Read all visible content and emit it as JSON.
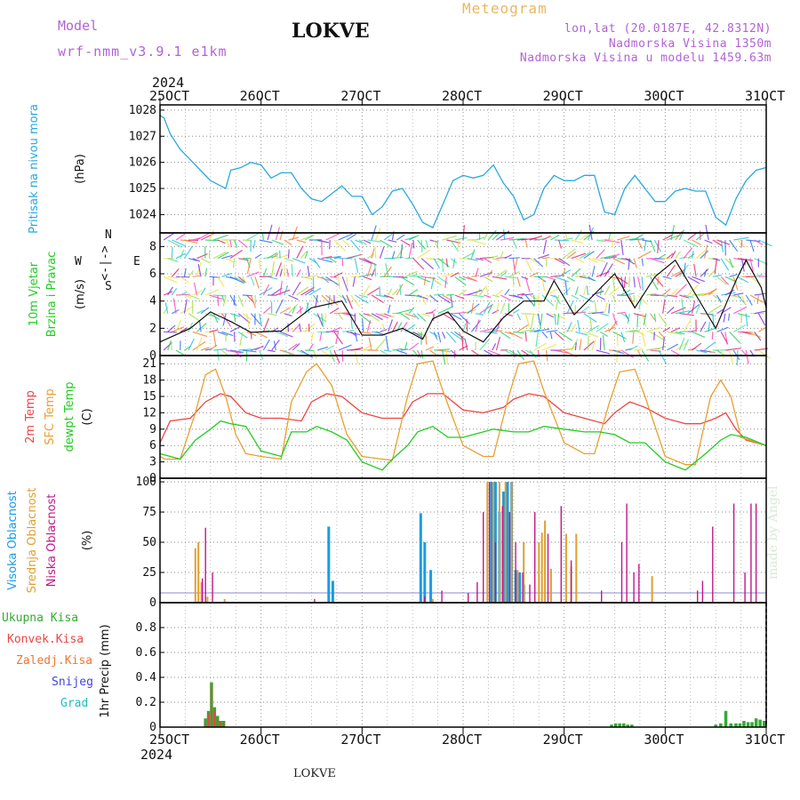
{
  "header": {
    "model_label": "Model",
    "model_name": "wrf-nmm_v3.9.1 e1km",
    "station": "LOKVE",
    "title": "Meteogram",
    "lonlat": "lon,lat (20.0187E, 42.8312N)",
    "elevation": "Nadmorska Visina 1350m",
    "model_elevation": "Nadmorska Visina u modelu 1459.63m",
    "year_top": "2024",
    "year_bottom": "2024",
    "credit": "made by Angel",
    "station_bottom": "LOKVE"
  },
  "colors": {
    "pressure": "#2aa8e0",
    "temp2m": "#ee4444",
    "sfc": "#e8a030",
    "dew": "#22cc22",
    "high_cloud": "#1a9be8",
    "mid_cloud": "#e0a030",
    "low_cloud": "#c0178a",
    "total_precip": "#33aa33",
    "conv_precip": "#ee4444",
    "frozen": "#ee7733",
    "snow": "#4444dd",
    "hail": "#22bbbb"
  },
  "chart_data": [
    {
      "type": "line",
      "name": "pressure",
      "ylabel_lines": [
        "Pritisak na nivou mora"
      ],
      "unit": "(hPa)",
      "xlim": [
        0,
        6
      ],
      "ylim": [
        1023.3,
        1028.2
      ],
      "yticks": [
        1024,
        1025,
        1026,
        1027,
        1028
      ],
      "x_ticks": [
        "25OCT",
        "26OCT",
        "27OCT",
        "28OCT",
        "29OCT",
        "30OCT",
        "31OCT"
      ],
      "series": [
        {
          "key": "pressure",
          "x": [
            0,
            0.04,
            0.1,
            0.2,
            0.3,
            0.4,
            0.5,
            0.6,
            0.65,
            0.7,
            0.8,
            0.9,
            1.0,
            1.1,
            1.2,
            1.3,
            1.4,
            1.5,
            1.6,
            1.7,
            1.8,
            1.9,
            2.0,
            2.1,
            2.2,
            2.3,
            2.4,
            2.5,
            2.6,
            2.7,
            2.8,
            2.9,
            3.0,
            3.1,
            3.2,
            3.3,
            3.4,
            3.5,
            3.6,
            3.7,
            3.8,
            3.9,
            4.0,
            4.1,
            4.2,
            4.3,
            4.4,
            4.5,
            4.6,
            4.7,
            4.8,
            4.9,
            5.0,
            5.1,
            5.2,
            5.3,
            5.4,
            5.5,
            5.6,
            5.7,
            5.8,
            5.9,
            6.0
          ],
          "y": [
            1027.8,
            1027.7,
            1027.1,
            1026.5,
            1026.1,
            1025.7,
            1025.3,
            1025.1,
            1025.0,
            1025.7,
            1025.8,
            1026.0,
            1025.9,
            1025.4,
            1025.6,
            1025.6,
            1025.0,
            1024.6,
            1024.5,
            1024.8,
            1025.1,
            1024.7,
            1024.7,
            1024.0,
            1024.3,
            1024.9,
            1025.0,
            1024.4,
            1023.7,
            1023.5,
            1024.4,
            1025.3,
            1025.5,
            1025.4,
            1025.5,
            1025.9,
            1025.2,
            1024.7,
            1023.8,
            1024.0,
            1025.0,
            1025.5,
            1025.3,
            1025.3,
            1025.5,
            1025.5,
            1024.1,
            1024.0,
            1025.0,
            1025.5,
            1025.0,
            1024.5,
            1024.5,
            1024.9,
            1025.0,
            1024.9,
            1024.9,
            1023.9,
            1023.6,
            1024.6,
            1025.3,
            1025.7,
            1025.8
          ]
        }
      ]
    },
    {
      "type": "line",
      "name": "wind",
      "ylabel_lines": [
        "10m Vjetar",
        "Brzina i Pravac"
      ],
      "unit": "(m/s)",
      "compass": [
        "W",
        "<-|->",
        "E",
        "N",
        "S"
      ],
      "xlim": [
        0,
        6
      ],
      "ylim": [
        0,
        9
      ],
      "yticks": [
        0,
        2,
        4,
        6,
        8
      ],
      "series": [
        {
          "key": "wind_speed",
          "x": [
            0,
            0.3,
            0.5,
            0.7,
            0.9,
            1.2,
            1.5,
            1.8,
            2.0,
            2.2,
            2.4,
            2.6,
            2.7,
            2.85,
            3.0,
            3.2,
            3.4,
            3.6,
            3.8,
            3.9,
            4.1,
            4.3,
            4.5,
            4.7,
            4.9,
            5.1,
            5.3,
            5.5,
            5.7,
            5.8,
            5.95,
            6.0
          ],
          "y": [
            1.0,
            2.0,
            3.2,
            2.5,
            1.7,
            1.8,
            3.5,
            4.0,
            1.5,
            1.5,
            2.0,
            1.2,
            2.7,
            3.2,
            1.8,
            1.0,
            2.8,
            4.0,
            4.0,
            5.5,
            3.0,
            4.5,
            6.0,
            3.5,
            5.8,
            7.0,
            4.5,
            2.0,
            5.5,
            7.0,
            5.0,
            3.5
          ]
        }
      ]
    },
    {
      "type": "line",
      "name": "temperature",
      "ylabel_lines": [
        "2m Temp",
        "SFC Temp",
        "dewpt Temp"
      ],
      "unit": "(C)",
      "xlim": [
        0,
        6
      ],
      "ylim": [
        0,
        22.5
      ],
      "yticks": [
        0,
        3,
        6,
        9,
        12,
        15,
        18,
        21
      ],
      "series": [
        {
          "key": "temp2m",
          "x": [
            0,
            0.1,
            0.3,
            0.45,
            0.6,
            0.7,
            0.85,
            1.0,
            1.2,
            1.4,
            1.5,
            1.65,
            1.8,
            2.0,
            2.2,
            2.4,
            2.5,
            2.65,
            2.8,
            3.0,
            3.2,
            3.4,
            3.5,
            3.65,
            3.8,
            4.0,
            4.2,
            4.4,
            4.5,
            4.65,
            4.8,
            5.0,
            5.2,
            5.35,
            5.5,
            5.6,
            5.7,
            5.8,
            6.0
          ],
          "y": [
            6.5,
            10.5,
            11,
            14,
            15.5,
            15,
            12,
            11,
            11,
            10.5,
            14,
            15.5,
            15,
            12,
            11,
            11,
            14,
            15.5,
            15.5,
            12.5,
            12,
            13,
            14.5,
            15.5,
            15,
            12,
            11,
            10,
            12,
            14,
            13,
            11,
            10,
            10,
            11,
            12,
            9,
            7,
            6
          ]
        },
        {
          "key": "sfc",
          "x": [
            0,
            0.05,
            0.2,
            0.35,
            0.45,
            0.55,
            0.65,
            0.75,
            0.85,
            1.0,
            1.2,
            1.3,
            1.45,
            1.55,
            1.7,
            1.85,
            2.0,
            2.2,
            2.3,
            2.45,
            2.55,
            2.7,
            2.8,
            3.0,
            3.2,
            3.3,
            3.45,
            3.55,
            3.7,
            3.8,
            4.0,
            4.2,
            4.3,
            4.45,
            4.55,
            4.7,
            4.8,
            5.0,
            5.2,
            5.3,
            5.45,
            5.55,
            5.65,
            5.75,
            6.0
          ],
          "y": [
            4,
            3.5,
            3.5,
            12,
            19,
            20,
            15,
            8,
            4.5,
            4,
            3.5,
            14,
            19.5,
            21,
            17,
            8,
            4,
            3.5,
            3.3,
            15,
            21,
            21.5,
            16,
            6,
            4,
            4,
            15,
            21,
            21.5,
            16,
            6.5,
            4.5,
            4.5,
            14,
            19.5,
            20,
            15,
            4,
            2.5,
            2.5,
            15,
            18,
            15,
            7.5,
            6
          ]
        },
        {
          "key": "dew",
          "x": [
            0,
            0.2,
            0.35,
            0.5,
            0.6,
            0.7,
            0.85,
            1.0,
            1.2,
            1.3,
            1.45,
            1.55,
            1.7,
            1.85,
            2.0,
            2.2,
            2.3,
            2.45,
            2.55,
            2.7,
            2.85,
            3.0,
            3.2,
            3.3,
            3.5,
            3.65,
            3.8,
            4.0,
            4.2,
            4.35,
            4.5,
            4.65,
            4.8,
            5.0,
            5.2,
            5.4,
            5.55,
            5.65,
            5.8,
            6.0
          ],
          "y": [
            4.5,
            3.5,
            7,
            9,
            10.5,
            10,
            9.5,
            5,
            4,
            8.5,
            8.5,
            9.5,
            8.5,
            7,
            3,
            1.5,
            3.5,
            6,
            8.5,
            9.5,
            7.5,
            7.5,
            8.5,
            9,
            8.5,
            8.5,
            9.5,
            9,
            8.5,
            8.5,
            8,
            6.5,
            6.5,
            3,
            1.5,
            4.5,
            7,
            8,
            7.5,
            6
          ]
        }
      ]
    },
    {
      "type": "bar",
      "name": "clouds",
      "ylabel_lines": [
        "Visoka Oblacnost",
        "Srednja Oblacnost",
        "Niska Oblacnost"
      ],
      "unit": "(%)",
      "xlim": [
        0,
        6
      ],
      "ylim": [
        0,
        103
      ],
      "yticks": [
        0,
        25,
        50,
        75,
        100
      ],
      "series": [
        {
          "key": "high_cloud",
          "x": [
            1.67,
            1.71,
            2.58,
            2.62,
            2.68,
            3.28,
            3.32,
            3.36,
            3.4,
            3.44,
            3.48,
            3.52,
            3.56,
            3.6
          ],
          "values": [
            63,
            18,
            74,
            50,
            27,
            100,
            100,
            75,
            92,
            100,
            100,
            27,
            25,
            15
          ]
        },
        {
          "key": "mid_cloud",
          "x": [
            0.35,
            0.38,
            0.41,
            0.47,
            0.64,
            2.7,
            3.24,
            3.3,
            3.36,
            3.42,
            3.48,
            3.54,
            3.6,
            3.75,
            3.78,
            3.81,
            3.87,
            4.02,
            4.07,
            4.12,
            4.87
          ],
          "values": [
            45,
            50,
            17,
            5,
            3,
            3,
            100,
            100,
            100,
            100,
            100,
            27,
            50,
            50,
            58,
            68,
            28,
            57,
            30,
            57,
            22
          ]
        },
        {
          "key": "low_cloud",
          "x": [
            0.42,
            0.45,
            0.52,
            1.53,
            2.62,
            2.79,
            3.05,
            3.14,
            3.2,
            3.26,
            3.32,
            3.39,
            3.46,
            3.52,
            3.59,
            3.66,
            3.71,
            3.84,
            3.97,
            4.07,
            4.37,
            4.57,
            4.62,
            4.69,
            4.74,
            5.32,
            5.37,
            5.47,
            5.68,
            5.79,
            5.85,
            5.9
          ],
          "values": [
            20,
            62,
            25,
            3,
            5,
            10,
            8,
            17,
            75,
            100,
            50,
            80,
            75,
            50,
            25,
            15,
            75,
            57,
            80,
            35,
            10,
            50,
            82,
            25,
            32,
            10,
            18,
            63,
            82,
            25,
            82,
            82
          ]
        }
      ]
    },
    {
      "type": "bar",
      "name": "precipitation",
      "ylabel_lines": [
        "1hr Precip"
      ],
      "unit": "(mm)",
      "legend": [
        "Ukupna Kisa",
        "Konvek.Kisa",
        "Zaledj.Kisa",
        "Snijeg",
        "Grad"
      ],
      "xlim": [
        0,
        6
      ],
      "ylim": [
        0,
        1.0
      ],
      "yticks": [
        0,
        0.2,
        0.4,
        0.6,
        0.8
      ],
      "x_ticks": [
        "25OCT",
        "26OCT",
        "27OCT",
        "28OCT",
        "29OCT",
        "30OCT",
        "31OCT"
      ],
      "series": [
        {
          "key": "total_precip",
          "x": [
            0.45,
            0.48,
            0.51,
            0.54,
            0.57,
            0.6,
            0.63,
            4.47,
            4.51,
            4.55,
            4.59,
            4.63,
            4.67,
            5.5,
            5.55,
            5.6,
            5.65,
            5.7,
            5.74,
            5.78,
            5.82,
            5.86,
            5.9,
            5.94,
            5.98
          ],
          "values": [
            0.07,
            0.13,
            0.36,
            0.16,
            0.09,
            0.05,
            0.05,
            0.02,
            0.03,
            0.03,
            0.03,
            0.02,
            0.02,
            0.02,
            0.03,
            0.13,
            0.03,
            0.03,
            0.03,
            0.05,
            0.04,
            0.04,
            0.07,
            0.06,
            0.05
          ]
        },
        {
          "key": "conv_precip",
          "x": [
            0.45,
            0.48,
            0.51,
            0.54,
            0.57,
            0.6,
            0.63
          ],
          "values": [
            0.05,
            0.11,
            0.34,
            0.13,
            0.06,
            0.04,
            0.04
          ]
        }
      ]
    }
  ]
}
